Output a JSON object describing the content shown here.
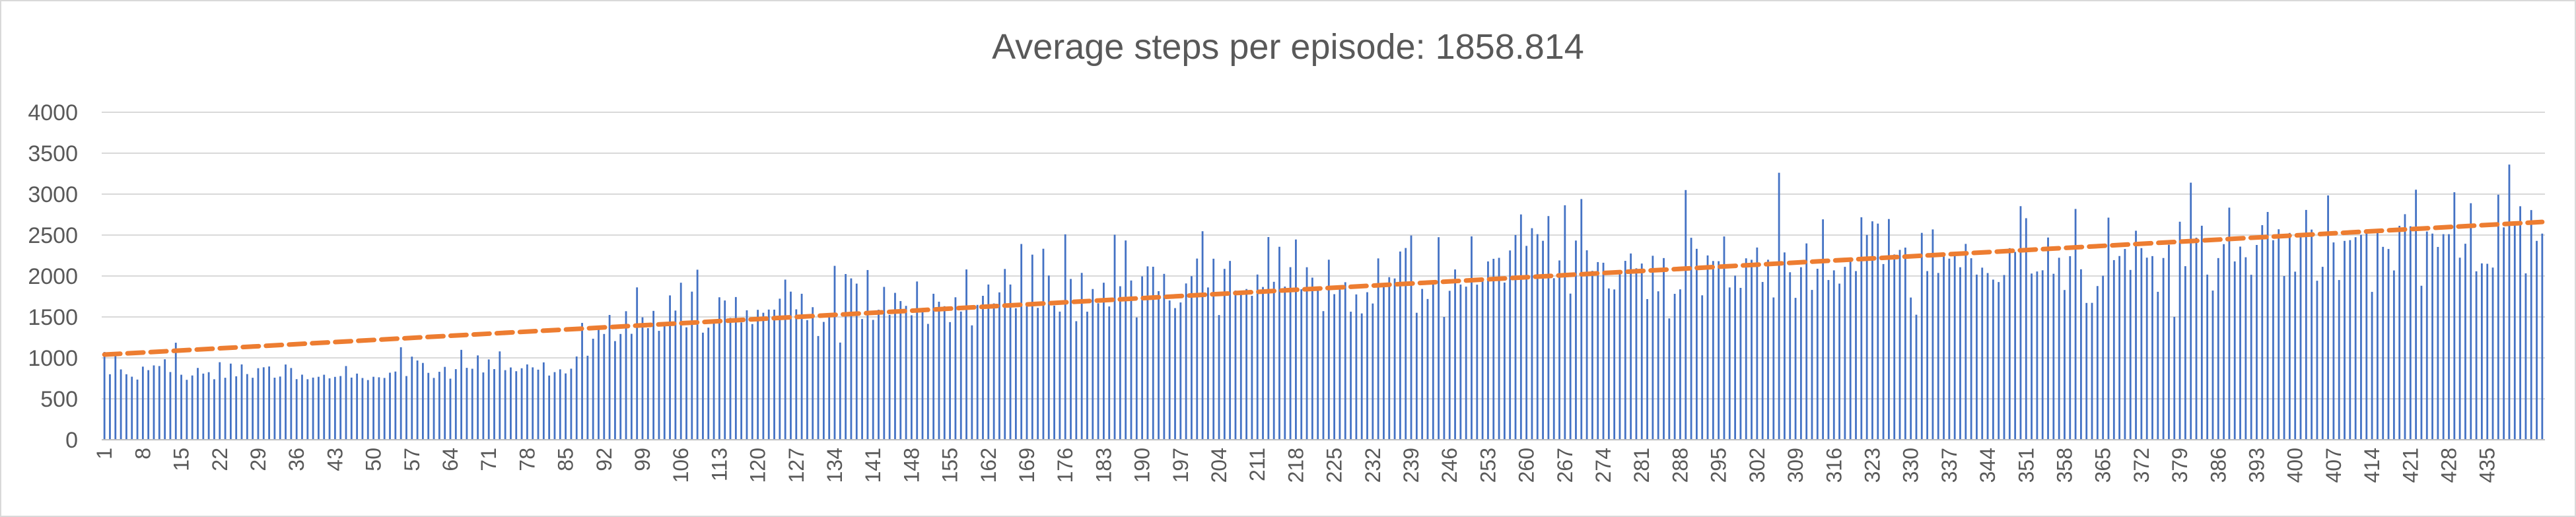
{
  "chart_data": {
    "type": "bar",
    "title": "Average steps per episode: 1858.814",
    "xlabel": "",
    "ylabel": "",
    "ylim": [
      0,
      4000
    ],
    "yticks": [
      0,
      500,
      1000,
      1500,
      2000,
      2500,
      3000,
      3500,
      4000
    ],
    "x_tick_labels": [
      "1",
      "8",
      "15",
      "22",
      "29",
      "36",
      "43",
      "50",
      "57",
      "64",
      "71",
      "78",
      "85",
      "92",
      "99",
      "106",
      "113",
      "120",
      "127",
      "134",
      "141",
      "148",
      "155",
      "162",
      "169",
      "176",
      "183",
      "190",
      "197",
      "204",
      "211",
      "218",
      "225",
      "232",
      "239",
      "246",
      "253",
      "260",
      "267",
      "274",
      "281",
      "288",
      "295",
      "302",
      "309",
      "316",
      "323",
      "330",
      "337",
      "344",
      "351",
      "358",
      "365",
      "372",
      "379",
      "386",
      "393",
      "400",
      "407",
      "414",
      "421",
      "428",
      "435"
    ],
    "episode_count": 441,
    "grid": true,
    "legend": "none",
    "bar_color": "#4472c4",
    "trendline": {
      "type": "linear",
      "start": 1040,
      "end": 2660,
      "color": "#ed7d31",
      "style": "dashed"
    },
    "values": [
      1072,
      800,
      1064,
      859,
      800,
      770,
      735,
      893,
      850,
      908,
      900,
      983,
      827,
      1185,
      794,
      732,
      785,
      877,
      808,
      825,
      739,
      947,
      757,
      930,
      775,
      920,
      802,
      757,
      874,
      885,
      895,
      758,
      772,
      919,
      876,
      740,
      795,
      739,
      759,
      769,
      794,
      750,
      768,
      778,
      900,
      759,
      808,
      754,
      729,
      769,
      763,
      755,
      819,
      833,
      1130,
      778,
      1015,
      968,
      938,
      817,
      755,
      830,
      890,
      746,
      862,
      1098,
      878,
      867,
      1030,
      822,
      981,
      863,
      1079,
      850,
      883,
      837,
      873,
      920,
      884,
      856,
      945,
      784,
      826,
      860,
      810,
      868,
      1017,
      1427,
      1026,
      1234,
      1357,
      1292,
      1524,
      1205,
      1292,
      1570,
      1294,
      1861,
      1496,
      1363,
      1574,
      1330,
      1428,
      1763,
      1578,
      1918,
      1373,
      1809,
      2077,
      1308,
      1369,
      1426,
      1740,
      1701,
      1488,
      1743,
      1433,
      1581,
      1413,
      1587,
      1551,
      1590,
      1589,
      1723,
      1956,
      1809,
      1593,
      1783,
      1461,
      1619,
      1267,
      1439,
      1508,
      2124,
      1187,
      2024,
      1971,
      1907,
      1475,
      2073,
      1464,
      1588,
      1867,
      1525,
      1794,
      1694,
      1635,
      1520,
      1933,
      1610,
      1415,
      1783,
      1686,
      1631,
      1437,
      1740,
      1566,
      2080,
      1397,
      1647,
      1758,
      1896,
      1665,
      1800,
      2086,
      1896,
      1606,
      2391,
      1678,
      2261,
      1611,
      2333,
      2006,
      1638,
      1565,
      2509,
      1964,
      1448,
      2038,
      1564,
      1841,
      1667,
      1918,
      1628,
      2504,
      1875,
      2434,
      1945,
      1494,
      1996,
      2118,
      2113,
      1815,
      2026,
      1701,
      1608,
      1677,
      1909,
      1998,
      2213,
      2547,
      1860,
      2211,
      1523,
      2087,
      2184,
      1822,
      1776,
      1841,
      1758,
      2018,
      1866,
      2476,
      1929,
      2357,
      1871,
      2108,
      2446,
      1838,
      2107,
      1980,
      1858,
      1571,
      2199,
      1778,
      1836,
      1924,
      1564,
      1775,
      1543,
      1802,
      1664,
      2215,
      1872,
      1986,
      1970,
      2299,
      2342,
      2495,
      1551,
      1842,
      1719,
      1903,
      2474,
      1500,
      1819,
      2080,
      1896,
      1870,
      2484,
      1894,
      1954,
      2178,
      2210,
      2222,
      1920,
      2312,
      2501,
      2752,
      2368,
      2584,
      2511,
      2430,
      2732,
      1973,
      2190,
      2864,
      1785,
      2433,
      2940,
      2314,
      2063,
      2170,
      2162,
      1848,
      1836,
      2048,
      2185,
      2275,
      2094,
      2152,
      1718,
      2247,
      1813,
      2219,
      1482,
      1782,
      1837,
      3050,
      2467,
      2332,
      1764,
      2251,
      2183,
      2181,
      2483,
      1860,
      2004,
      1855,
      2216,
      2198,
      2348,
      1927,
      2199,
      1738,
      3261,
      2288,
      2046,
      1733,
      2107,
      2398,
      1830,
      2088,
      2692,
      1951,
      2069,
      1907,
      2112,
      2213,
      2060,
      2717,
      2502,
      2668,
      2640,
      2146,
      2696,
      2263,
      2319,
      2347,
      1737,
      1527,
      2527,
      2060,
      2569,
      2037,
      2256,
      2212,
      2245,
      2107,
      2392,
      2217,
      2017,
      2102,
      2036,
      1956,
      1926,
      2012,
      2340,
      2294,
      2853,
      2706,
      2030,
      2055,
      2070,
      2470,
      2027,
      2223,
      1829,
      2242,
      2819,
      2082,
      1671,
      1672,
      1877,
      2003,
      2713,
      2194,
      2244,
      2330,
      2074,
      2553,
      2341,
      2224,
      2243,
      1807,
      2220,
      2381,
      1501,
      2663,
      2120,
      3140,
      2468,
      2614,
      2017,
      1822,
      2219,
      2389,
      2835,
      2178,
      2359,
      2229,
      2015,
      2379,
      2621,
      2782,
      2437,
      2571,
      2000,
      2526,
      2053,
      2492,
      2807,
      2567,
      1942,
      2112,
      2984,
      2410,
      1951,
      2429,
      2438,
      2474,
      2503,
      2529,
      1806,
      2555,
      2356,
      2330,
      2068,
      2613,
      2755,
      2607,
      3054,
      1881,
      2543,
      2518,
      2355,
      2511,
      2511,
      3023,
      2224,
      2394,
      2889,
      2057,
      2154,
      2149,
      2103,
      2993,
      2594,
      3361,
      2641,
      2852,
      2032,
      2805,
      2429,
      2518
    ]
  }
}
